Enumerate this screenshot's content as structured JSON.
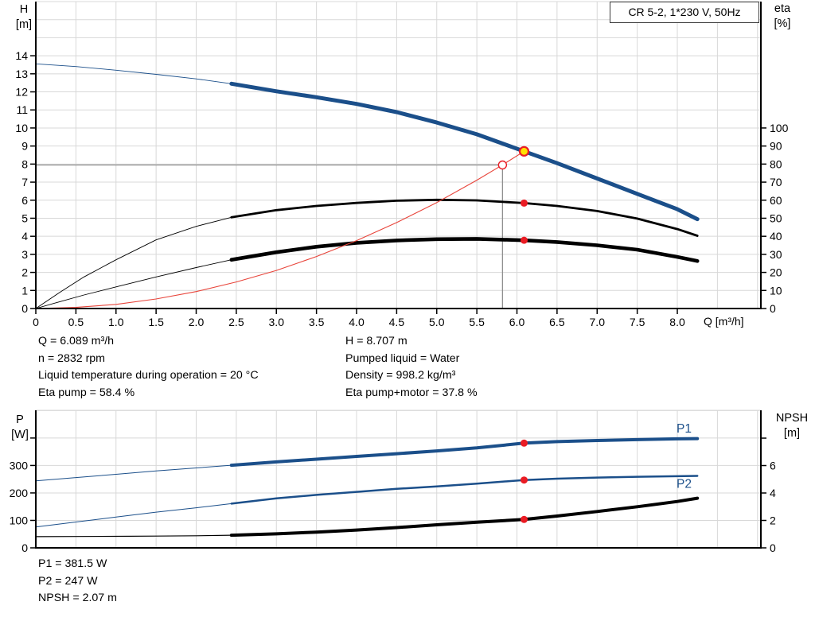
{
  "title_box": "CR 5-2, 1*230 V, 50Hz",
  "colors": {
    "curve_blue": "#1b4f8a",
    "curve_black": "#000000",
    "system_red": "#e8443a",
    "marker_red": "#ea1c24",
    "marker_yellow": "#ffe100",
    "grid": "#d8d8d8",
    "duty_gray": "#8f8f8f",
    "axis": "#000000"
  },
  "top_chart": {
    "left_axis_label": [
      "H",
      "[m]"
    ],
    "right_axis_label": [
      "eta",
      "[%]"
    ],
    "x_axis_label": "Q [m³/h]"
  },
  "bottom_chart": {
    "left_axis_label": [
      "P",
      "[W]"
    ],
    "right_axis_label": [
      "NPSH",
      "[m]"
    ]
  },
  "info_top": {
    "left": [
      "Q = 6.089 m³/h",
      "n = 2832 rpm",
      "Liquid temperature during operation = 20 °C",
      "Eta pump = 58.4 %"
    ],
    "right": [
      "H = 8.707 m",
      "Pumped liquid = Water",
      "Density = 998.2 kg/m³",
      "Eta pump+motor = 37.8 %"
    ]
  },
  "info_bottom": {
    "lines": [
      "P1 = 381.5 W",
      "P2 = 247 W",
      "NPSH = 2.07 m"
    ]
  },
  "chart_data": [
    {
      "id": "qh-eta",
      "type": "line",
      "title": "CR 5-2, 1*230 V, 50Hz",
      "xlabel": "Q [m³/h]",
      "ylabel_left": "H [m]",
      "ylabel_right": "eta [%]",
      "x": {
        "min": 0,
        "max": 9.042,
        "grid_step": 0.5,
        "ticks": [
          {
            "v": 0,
            "label": "0"
          },
          {
            "v": 0.5,
            "label": "0.5"
          },
          {
            "v": 1,
            "label": "1.0"
          },
          {
            "v": 1.5,
            "label": "1.5"
          },
          {
            "v": 2,
            "label": "2.0"
          },
          {
            "v": 2.5,
            "label": "2.5"
          },
          {
            "v": 3,
            "label": "3.0"
          },
          {
            "v": 3.5,
            "label": "3.5"
          },
          {
            "v": 4,
            "label": "4.0"
          },
          {
            "v": 4.5,
            "label": "4.5"
          },
          {
            "v": 5,
            "label": "5.0"
          },
          {
            "v": 5.5,
            "label": "5.5"
          },
          {
            "v": 6,
            "label": "6.0"
          },
          {
            "v": 6.5,
            "label": "6.5"
          },
          {
            "v": 7,
            "label": "7.0"
          },
          {
            "v": 7.5,
            "label": "7.5"
          },
          {
            "v": 8,
            "label": "8.0"
          }
        ]
      },
      "left": {
        "min": 0,
        "max": 17.0,
        "grid_step": 1,
        "ticks": [
          {
            "v": 0,
            "label": "0"
          },
          {
            "v": 1,
            "label": "1"
          },
          {
            "v": 2,
            "label": "2"
          },
          {
            "v": 3,
            "label": "3"
          },
          {
            "v": 4,
            "label": "4"
          },
          {
            "v": 5,
            "label": "5"
          },
          {
            "v": 6,
            "label": "6"
          },
          {
            "v": 7,
            "label": "7"
          },
          {
            "v": 8,
            "label": "8"
          },
          {
            "v": 9,
            "label": "9"
          },
          {
            "v": 10,
            "label": "10"
          },
          {
            "v": 11,
            "label": "11"
          },
          {
            "v": 12,
            "label": "12"
          },
          {
            "v": 13,
            "label": "13"
          },
          {
            "v": 14,
            "label": "14"
          }
        ]
      },
      "right": {
        "min": 0,
        "max": 170.0,
        "ticks": [
          {
            "v": 0,
            "label": "0"
          },
          {
            "v": 10,
            "label": "10"
          },
          {
            "v": 20,
            "label": "20"
          },
          {
            "v": 30,
            "label": "30"
          },
          {
            "v": 40,
            "label": "40"
          },
          {
            "v": 50,
            "label": "50"
          },
          {
            "v": 60,
            "label": "60"
          },
          {
            "v": 70,
            "label": "70"
          },
          {
            "v": 80,
            "label": "80"
          },
          {
            "v": 90,
            "label": "90"
          },
          {
            "v": 100,
            "label": "100"
          }
        ]
      },
      "series": [
        {
          "name": "head-curve",
          "color": "#1b4f8a",
          "axis": "left",
          "w": [
            0.9,
            5
          ],
          "thick": [
            2.44,
            8.25
          ],
          "points": [
            [
              0,
              13.55
            ],
            [
              0.5,
              13.4
            ],
            [
              1,
              13.2
            ],
            [
              1.5,
              12.97
            ],
            [
              2,
              12.72
            ],
            [
              2.44,
              12.45
            ],
            [
              3,
              12.03
            ],
            [
              3.5,
              11.7
            ],
            [
              4,
              11.33
            ],
            [
              4.5,
              10.88
            ],
            [
              5,
              10.3
            ],
            [
              5.5,
              9.65
            ],
            [
              6.089,
              8.707
            ],
            [
              6.5,
              8.05
            ],
            [
              7,
              7.2
            ],
            [
              7.5,
              6.35
            ],
            [
              8,
              5.5
            ],
            [
              8.25,
              4.95
            ]
          ]
        },
        {
          "name": "eta-pump-curve",
          "color": "#000000",
          "axis": "right",
          "w": [
            0.9,
            2.8
          ],
          "thick": [
            2.44,
            8.25
          ],
          "points": [
            [
              0,
              0
            ],
            [
              0.3,
              9
            ],
            [
              0.6,
              17.5
            ],
            [
              1,
              27
            ],
            [
              1.5,
              38
            ],
            [
              2,
              45.5
            ],
            [
              2.44,
              50.5
            ],
            [
              3,
              54.5
            ],
            [
              3.5,
              56.8
            ],
            [
              4,
              58.5
            ],
            [
              4.5,
              59.7
            ],
            [
              5,
              60.2
            ],
            [
              5.5,
              59.9
            ],
            [
              6.089,
              58.4
            ],
            [
              6.5,
              56.8
            ],
            [
              7,
              54
            ],
            [
              7.5,
              49.8
            ],
            [
              8,
              44
            ],
            [
              8.25,
              40.3
            ]
          ]
        },
        {
          "name": "eta-pump-motor-curve",
          "color": "#000000",
          "axis": "right",
          "w": [
            0.9,
            4.6
          ],
          "thick": [
            2.44,
            8.25
          ],
          "points": [
            [
              0,
              0
            ],
            [
              0.3,
              3.8
            ],
            [
              0.6,
              7.5
            ],
            [
              1,
              12
            ],
            [
              1.5,
              17.5
            ],
            [
              2,
              22.7
            ],
            [
              2.44,
              27
            ],
            [
              3,
              31.2
            ],
            [
              3.5,
              34.2
            ],
            [
              4,
              36.4
            ],
            [
              4.5,
              37.7
            ],
            [
              5,
              38.4
            ],
            [
              5.5,
              38.6
            ],
            [
              6.089,
              37.8
            ],
            [
              6.5,
              36.8
            ],
            [
              7,
              35
            ],
            [
              7.5,
              32.6
            ],
            [
              8,
              28.6
            ],
            [
              8.25,
              26.3
            ]
          ]
        },
        {
          "name": "system-curve",
          "color": "#e8443a",
          "axis": "left",
          "w": [
            1.1,
            1.1
          ],
          "thick": null,
          "points": [
            [
              0,
              0
            ],
            [
              0.5,
              0.06
            ],
            [
              1,
              0.23
            ],
            [
              1.5,
              0.53
            ],
            [
              2,
              0.94
            ],
            [
              2.5,
              1.47
            ],
            [
              3,
              2.11
            ],
            [
              3.5,
              2.88
            ],
            [
              4,
              3.76
            ],
            [
              4.5,
              4.76
            ],
            [
              5,
              5.87
            ],
            [
              5.5,
              7.11
            ],
            [
              5.82,
              7.96
            ],
            [
              6.089,
              8.707
            ]
          ]
        }
      ],
      "ref_lines": {
        "q": 5.82,
        "h": 7.95
      },
      "markers": [
        {
          "type": "dot",
          "q": 6.089,
          "v": 58.4,
          "axis": "right"
        },
        {
          "type": "dot",
          "q": 6.089,
          "v": 37.8,
          "axis": "right"
        },
        {
          "type": "open-circle",
          "q": 5.82,
          "v": 7.95,
          "axis": "left"
        },
        {
          "type": "duty-point",
          "q": 6.089,
          "v": 8.707,
          "axis": "left"
        }
      ],
      "labels": []
    },
    {
      "id": "power-npsh",
      "type": "line",
      "xlabel": "",
      "ylabel_left": "P [W]",
      "ylabel_right": "NPSH [m]",
      "x": {
        "min": 0,
        "max": 9.042,
        "grid_step": 0.5,
        "ticks": []
      },
      "left": {
        "min": 0,
        "max": 501,
        "grid_step": 100,
        "ticks": [
          {
            "v": 0,
            "label": "0"
          },
          {
            "v": 100,
            "label": "100"
          },
          {
            "v": 200,
            "label": "200"
          },
          {
            "v": 300,
            "label": "300"
          },
          {
            "v": 400,
            "label": ""
          }
        ]
      },
      "right": {
        "min": 0,
        "max": 10.03,
        "ticks": [
          {
            "v": 0,
            "label": "0"
          },
          {
            "v": 2,
            "label": "2"
          },
          {
            "v": 4,
            "label": "4"
          },
          {
            "v": 6,
            "label": "6"
          },
          {
            "v": 8,
            "label": ""
          }
        ]
      },
      "series": [
        {
          "name": "p1-curve",
          "color": "#1b4f8a",
          "axis": "left",
          "w": [
            1,
            4
          ],
          "thick": [
            2.44,
            8.25
          ],
          "points": [
            [
              0,
              244
            ],
            [
              0.5,
              256
            ],
            [
              1,
              268
            ],
            [
              1.5,
              280
            ],
            [
              2,
              291
            ],
            [
              2.44,
              301
            ],
            [
              3,
              313
            ],
            [
              3.5,
              323
            ],
            [
              4,
              333
            ],
            [
              4.5,
              343
            ],
            [
              5,
              353
            ],
            [
              5.5,
              364
            ],
            [
              6.089,
              381.5
            ],
            [
              6.5,
              387
            ],
            [
              7,
              391
            ],
            [
              7.5,
              394
            ],
            [
              8,
              397
            ],
            [
              8.25,
              398
            ]
          ]
        },
        {
          "name": "p2-curve",
          "color": "#1b4f8a",
          "axis": "left",
          "w": [
            1,
            2.5
          ],
          "thick": [
            2.44,
            8.25
          ],
          "points": [
            [
              0,
              76
            ],
            [
              0.5,
              94
            ],
            [
              1,
              112
            ],
            [
              1.5,
              130
            ],
            [
              2,
              146
            ],
            [
              2.44,
              161
            ],
            [
              3,
              180
            ],
            [
              3.5,
              193
            ],
            [
              4,
              204
            ],
            [
              4.5,
              215
            ],
            [
              5,
              224
            ],
            [
              5.5,
              234
            ],
            [
              6.089,
              247
            ],
            [
              6.5,
              252
            ],
            [
              7,
              256
            ],
            [
              7.5,
              259
            ],
            [
              8,
              261
            ],
            [
              8.25,
              262
            ]
          ]
        },
        {
          "name": "npsh-curve",
          "color": "#000000",
          "axis": "right",
          "w": [
            1.2,
            4
          ],
          "thick": [
            2.44,
            8.25
          ],
          "points": [
            [
              0,
              0.82
            ],
            [
              0.5,
              0.83
            ],
            [
              1,
              0.84
            ],
            [
              1.5,
              0.86
            ],
            [
              2,
              0.88
            ],
            [
              2.44,
              0.92
            ],
            [
              3,
              1.02
            ],
            [
              3.5,
              1.15
            ],
            [
              4,
              1.3
            ],
            [
              4.5,
              1.48
            ],
            [
              5,
              1.68
            ],
            [
              5.5,
              1.87
            ],
            [
              6.089,
              2.07
            ],
            [
              6.5,
              2.32
            ],
            [
              7,
              2.65
            ],
            [
              7.5,
              3.0
            ],
            [
              8,
              3.38
            ],
            [
              8.25,
              3.62
            ]
          ]
        }
      ],
      "ref_lines": null,
      "markers": [
        {
          "type": "dot",
          "q": 6.089,
          "v": 381.5,
          "axis": "left"
        },
        {
          "type": "dot",
          "q": 6.089,
          "v": 247,
          "axis": "left"
        },
        {
          "type": "dot",
          "q": 6.089,
          "v": 2.07,
          "axis": "right"
        }
      ],
      "labels": [
        {
          "text": "P1",
          "q": 7.99,
          "v": 420,
          "axis": "left",
          "color": "#1b4f8a"
        },
        {
          "text": "P2",
          "q": 7.99,
          "v": 219,
          "axis": "left",
          "color": "#1b4f8a"
        }
      ]
    }
  ]
}
